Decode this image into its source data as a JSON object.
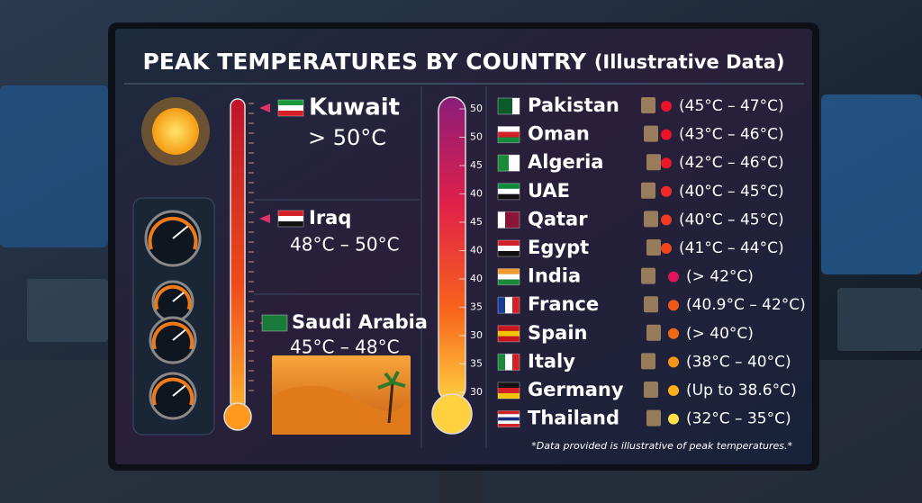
{
  "header": {
    "title": "PEAK TEMPERATURES BY COUNTRY",
    "subtitle": "(Illustrative Data)"
  },
  "highlights": [
    {
      "country": "Kuwait",
      "range": "> 50°C"
    },
    {
      "country": "Iraq",
      "range": "48°C – 50°C"
    },
    {
      "country": "Saudi Arabia",
      "range": "45°C – 48°C"
    }
  ],
  "scale": [
    "50",
    "50",
    "45",
    "40",
    "45",
    "40",
    "40",
    "35",
    "30",
    "35",
    "30"
  ],
  "countries": [
    {
      "name": "Pakistan",
      "range": "(45°C – 47°C)"
    },
    {
      "name": "Oman",
      "range": "(43°C – 46°C)"
    },
    {
      "name": "Algeria",
      "range": "(42°C – 46°C)"
    },
    {
      "name": "UAE",
      "range": "(40°C – 45°C)"
    },
    {
      "name": "Qatar",
      "range": "(40°C – 45°C)"
    },
    {
      "name": "Egypt",
      "range": "(41°C – 44°C)"
    },
    {
      "name": "India",
      "range": "(> 42°C)"
    },
    {
      "name": "France",
      "range": "(40.9°C – 42°C)"
    },
    {
      "name": "Spain",
      "range": "(> 40°C)"
    },
    {
      "name": "Italy",
      "range": "(38°C – 40°C)"
    },
    {
      "name": "Germany",
      "range": "(Up to 38.6°C)"
    },
    {
      "name": "Thailand",
      "range": "(32°C – 35°C)"
    }
  ],
  "footnote": "*Data provided is illustrative of peak temperatures.*"
}
